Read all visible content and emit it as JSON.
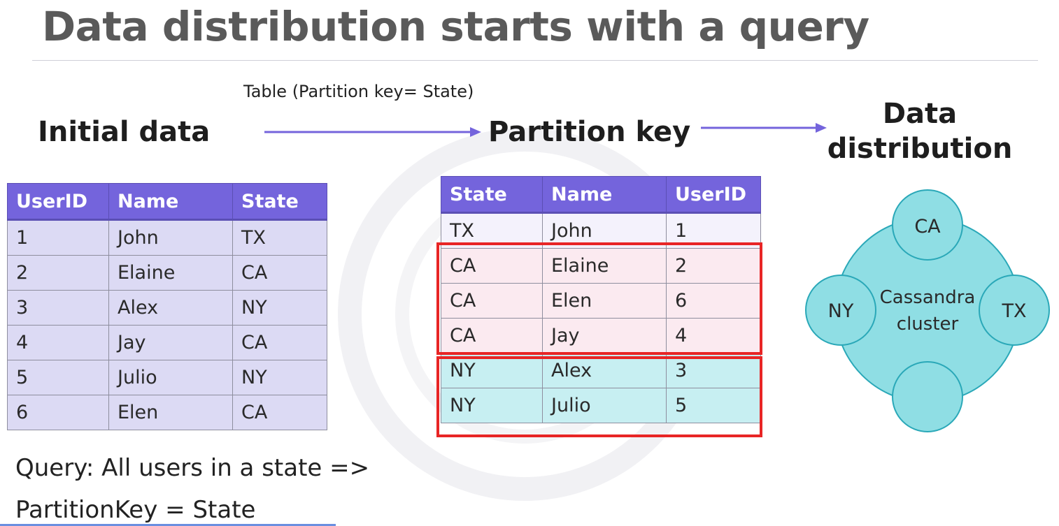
{
  "title": "Data distribution starts with a query",
  "labels": {
    "initial": "Initial data",
    "caption": "Table (Partition key= State)",
    "partition_key": "Partition key",
    "distribution_line1": "Data",
    "distribution_line2": "distribution"
  },
  "initial_table": {
    "headers": [
      "UserID",
      "Name",
      "State"
    ],
    "rows": [
      [
        "1",
        "John",
        "TX"
      ],
      [
        "2",
        "Elaine",
        "CA"
      ],
      [
        "3",
        "Alex",
        "NY"
      ],
      [
        "4",
        "Jay",
        "CA"
      ],
      [
        "5",
        "Julio",
        "NY"
      ],
      [
        "6",
        "Elen",
        "CA"
      ]
    ]
  },
  "partition_table": {
    "headers": [
      "State",
      "Name",
      "UserID"
    ],
    "rows": [
      [
        "TX",
        "John",
        "1"
      ],
      [
        "CA",
        "Elaine",
        "2"
      ],
      [
        "CA",
        "Elen",
        "6"
      ],
      [
        "CA",
        "Jay",
        "4"
      ],
      [
        "NY",
        "Alex",
        "3"
      ],
      [
        "NY",
        "Julio",
        "5"
      ]
    ]
  },
  "cluster": {
    "label_line1": "Cassandra",
    "label_line2": "cluster",
    "nodes": [
      "CA",
      "NY",
      "TX",
      ""
    ]
  },
  "query": {
    "line1": "Query: All users in a state =>",
    "line2": "PartitionKey = State"
  },
  "colors": {
    "header": "#7464dc",
    "highlight": "#e82525",
    "node_fill": "#8fdee4",
    "arrow": "#7464dc"
  }
}
